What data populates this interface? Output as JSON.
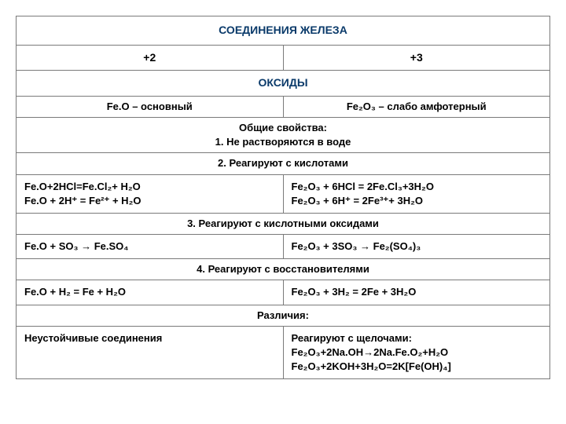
{
  "title": "СОЕДИНЕНИЯ ЖЕЛЕЗА",
  "col1_header": "+2",
  "col2_header": "+3",
  "oxides_header": "ОКСИДЫ",
  "feo_type": "Fe.O – основный",
  "fe2o3_type": "Fe₂O₃ – слабо амфотерный",
  "common_props_title": "Общие свойства:",
  "common_prop1": "1. Не растворяются в воде",
  "prop2": "2. Реагируют с кислотами",
  "feo_acid1": "Fe.O+2HCl=Fe.Cl₂+ H₂O",
  "feo_acid2": "Fe.O + 2H⁺ = Fe²⁺ + H₂O",
  "fe2o3_acid1": "Fe₂O₃ + 6HCl = 2Fe.Cl₃+3H₂O",
  "fe2o3_acid2": "Fe₂O₃ + 6H⁺ = 2Fe³⁺+ 3H₂O",
  "prop3": "3. Реагируют с кислотными  оксидами",
  "feo_so3": "Fe.O + SO₃ → Fe.SO₄",
  "fe2o3_so3": "Fe₂O₃ + 3SO₃ → Fe₂(SO₄)₃",
  "prop4": "4. Реагируют с восстановителями",
  "feo_h2": "Fe.O + H₂ = Fe + H₂O",
  "fe2o3_h2": "Fe₂O₃ + 3H₂ = 2Fe + 3H₂O",
  "diff_title": "Различия:",
  "feo_diff": " Неустойчивые соединения",
  "fe2o3_diff_title": "Реагируют с щелочами:",
  "fe2o3_diff1": "Fe₂O₃+2Na.OH→2Na.Fe.O₂+H₂O",
  "fe2o3_diff2": "Fe₂O₃+2KOH+3H₂O=2K[Fe(OH)₄]",
  "colors": {
    "title_color": "#0a3a6a",
    "border_color": "#7a7a7a",
    "text_color": "#000000",
    "background": "#ffffff"
  },
  "fonts": {
    "family": "Arial",
    "title_size": 14,
    "body_size": 13
  }
}
